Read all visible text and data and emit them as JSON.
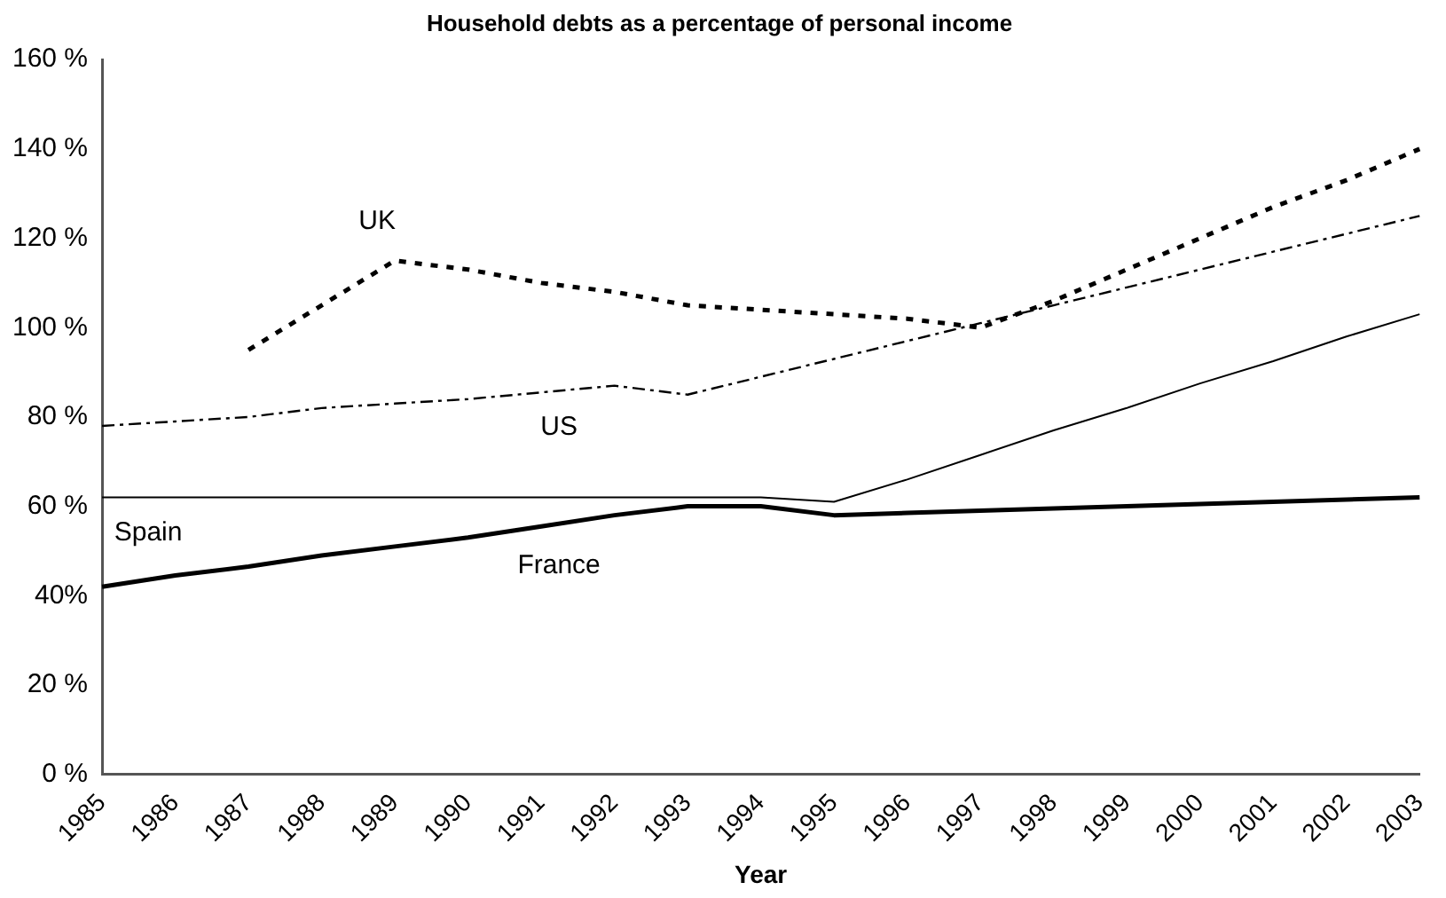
{
  "chart_data": {
    "type": "line",
    "title": "Household debts as a percentage of personal income",
    "xlabel": "Year",
    "categories": [
      "1985",
      "1986",
      "1987",
      "1988",
      "1989",
      "1990",
      "1991",
      "1992",
      "1993",
      "1994",
      "1995",
      "1996",
      "1997",
      "1998",
      "1999",
      "2000",
      "2001",
      "2002",
      "2003"
    ],
    "series": [
      {
        "name": "UK",
        "color": "#000000",
        "line_style": "dotted",
        "values": [
          null,
          null,
          95,
          105,
          115,
          113,
          110,
          108,
          105,
          104,
          103,
          102,
          100,
          106,
          113,
          120,
          127,
          133,
          140
        ]
      },
      {
        "name": "US",
        "color": "#000000",
        "line_style": "dashed",
        "values": [
          78,
          79,
          80,
          82,
          83,
          84,
          85.5,
          87,
          85,
          89,
          93,
          97,
          101,
          105,
          109,
          113,
          117,
          121,
          125
        ]
      },
      {
        "name": "Spain",
        "color": "#000000",
        "line_style": "solid",
        "values": [
          62,
          62,
          62,
          62,
          62,
          62,
          62,
          62,
          62,
          62,
          61,
          66,
          71.5,
          77,
          82,
          87.5,
          92.5,
          98,
          103
        ]
      },
      {
        "name": "France",
        "color": "#000000",
        "line_style": "solid",
        "values": [
          42,
          44.5,
          46.5,
          49,
          51,
          53,
          55.5,
          58,
          60,
          60,
          58,
          58.5,
          59,
          59.5,
          60,
          60.5,
          61,
          61.5,
          62
        ]
      }
    ],
    "ylim": [
      0,
      160
    ],
    "yticks": [
      {
        "value": 0,
        "label": "0 %"
      },
      {
        "value": 20,
        "label": "20 %"
      },
      {
        "value": 40,
        "label": "40%"
      },
      {
        "value": 60,
        "label": "60 %"
      },
      {
        "value": 80,
        "label": "80 %"
      },
      {
        "value": 100,
        "label": "100 %"
      },
      {
        "value": 120,
        "label": "120 %"
      },
      {
        "value": 140,
        "label": "140 %"
      },
      {
        "value": 160,
        "label": "160 %"
      }
    ],
    "grid": false,
    "legend": false,
    "marker": "none"
  }
}
